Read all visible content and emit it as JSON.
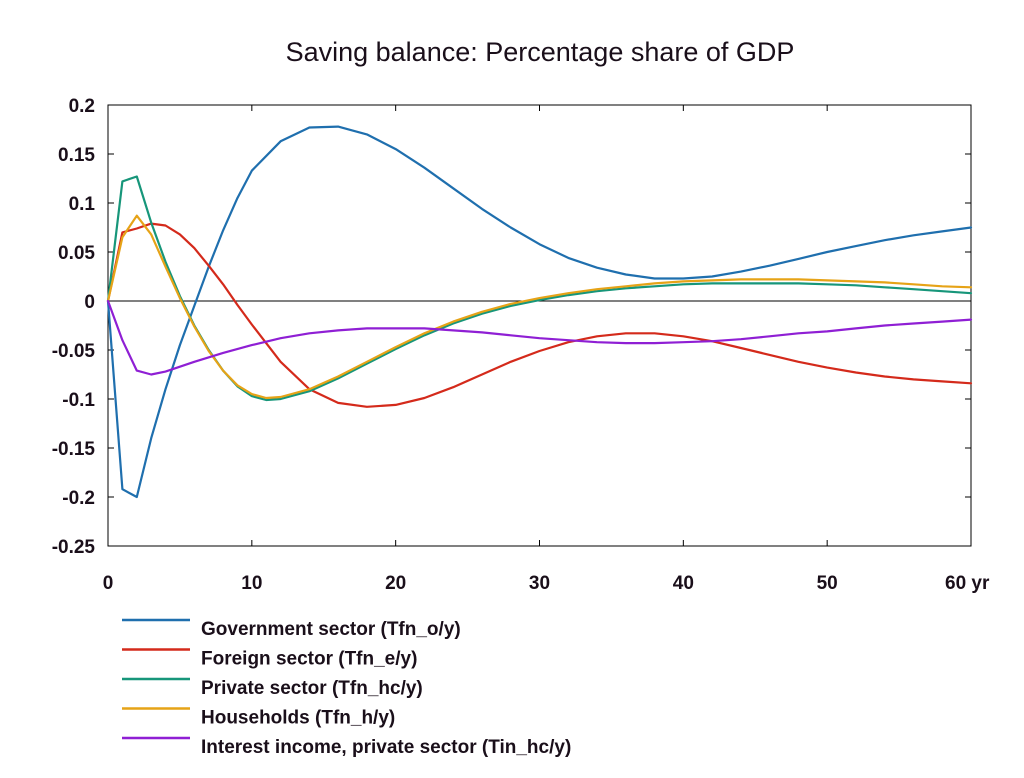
{
  "chart_data": {
    "type": "line",
    "title": "Saving balance: Percentage share of GDP",
    "xlabel": "",
    "ylabel": "",
    "xlim": [
      0,
      60
    ],
    "ylim": [
      -0.25,
      0.2
    ],
    "x_ticks": [
      0,
      10,
      20,
      30,
      40,
      50,
      60
    ],
    "x_tick_labels": [
      "0",
      "10",
      "20",
      "30",
      "40",
      "50",
      "60 yr"
    ],
    "y_ticks": [
      0.2,
      0.15,
      0.1,
      0.05,
      0,
      -0.05,
      -0.1,
      -0.15,
      -0.2,
      -0.25
    ],
    "y_tick_labels": [
      "0.2",
      "0.15",
      "0.1",
      "0.05",
      "0",
      "-0.05",
      "-0.1",
      "-0.15",
      "-0.2",
      "-0.25"
    ],
    "grid": false,
    "legend_position": "bottom",
    "series": [
      {
        "name": "Government sector (Tfn_o/y)",
        "color": "#1f6fae",
        "points": [
          [
            0,
            0
          ],
          [
            1,
            -0.192
          ],
          [
            2,
            -0.2
          ],
          [
            3,
            -0.14
          ],
          [
            4,
            -0.09
          ],
          [
            5,
            -0.045
          ],
          [
            6,
            -0.005
          ],
          [
            7,
            0.035
          ],
          [
            8,
            0.072
          ],
          [
            9,
            0.105
          ],
          [
            10,
            0.133
          ],
          [
            12,
            0.163
          ],
          [
            14,
            0.177
          ],
          [
            16,
            0.178
          ],
          [
            18,
            0.17
          ],
          [
            20,
            0.155
          ],
          [
            22,
            0.136
          ],
          [
            24,
            0.115
          ],
          [
            26,
            0.094
          ],
          [
            28,
            0.075
          ],
          [
            30,
            0.058
          ],
          [
            32,
            0.044
          ],
          [
            34,
            0.034
          ],
          [
            36,
            0.027
          ],
          [
            38,
            0.023
          ],
          [
            40,
            0.023
          ],
          [
            42,
            0.025
          ],
          [
            44,
            0.03
          ],
          [
            46,
            0.036
          ],
          [
            48,
            0.043
          ],
          [
            50,
            0.05
          ],
          [
            52,
            0.056
          ],
          [
            54,
            0.062
          ],
          [
            56,
            0.067
          ],
          [
            58,
            0.071
          ],
          [
            60,
            0.075
          ]
        ]
      },
      {
        "name": "Foreign sector (Tfn_e/y)",
        "color": "#d42a1b",
        "points": [
          [
            0,
            0
          ],
          [
            1,
            0.07
          ],
          [
            2,
            0.074
          ],
          [
            3,
            0.079
          ],
          [
            4,
            0.077
          ],
          [
            5,
            0.068
          ],
          [
            6,
            0.054
          ],
          [
            7,
            0.036
          ],
          [
            8,
            0.017
          ],
          [
            9,
            -0.004
          ],
          [
            10,
            -0.024
          ],
          [
            12,
            -0.062
          ],
          [
            14,
            -0.09
          ],
          [
            16,
            -0.104
          ],
          [
            18,
            -0.108
          ],
          [
            20,
            -0.106
          ],
          [
            22,
            -0.099
          ],
          [
            24,
            -0.088
          ],
          [
            26,
            -0.075
          ],
          [
            28,
            -0.062
          ],
          [
            30,
            -0.051
          ],
          [
            32,
            -0.042
          ],
          [
            34,
            -0.036
          ],
          [
            36,
            -0.033
          ],
          [
            38,
            -0.033
          ],
          [
            40,
            -0.036
          ],
          [
            42,
            -0.041
          ],
          [
            44,
            -0.048
          ],
          [
            46,
            -0.055
          ],
          [
            48,
            -0.062
          ],
          [
            50,
            -0.068
          ],
          [
            52,
            -0.073
          ],
          [
            54,
            -0.077
          ],
          [
            56,
            -0.08
          ],
          [
            58,
            -0.082
          ],
          [
            60,
            -0.084
          ]
        ]
      },
      {
        "name": "Private sector (Tfn_hc/y)",
        "color": "#17967a",
        "points": [
          [
            0,
            0
          ],
          [
            1,
            0.122
          ],
          [
            2,
            0.127
          ],
          [
            3,
            0.08
          ],
          [
            4,
            0.04
          ],
          [
            5,
            0.005
          ],
          [
            6,
            -0.025
          ],
          [
            7,
            -0.05
          ],
          [
            8,
            -0.071
          ],
          [
            9,
            -0.087
          ],
          [
            10,
            -0.097
          ],
          [
            11,
            -0.101
          ],
          [
            12,
            -0.1
          ],
          [
            14,
            -0.092
          ],
          [
            16,
            -0.079
          ],
          [
            18,
            -0.064
          ],
          [
            20,
            -0.049
          ],
          [
            22,
            -0.035
          ],
          [
            24,
            -0.023
          ],
          [
            26,
            -0.013
          ],
          [
            28,
            -0.005
          ],
          [
            30,
            0.001
          ],
          [
            32,
            0.006
          ],
          [
            34,
            0.01
          ],
          [
            36,
            0.013
          ],
          [
            38,
            0.015
          ],
          [
            40,
            0.017
          ],
          [
            42,
            0.018
          ],
          [
            44,
            0.018
          ],
          [
            46,
            0.018
          ],
          [
            48,
            0.018
          ],
          [
            50,
            0.017
          ],
          [
            52,
            0.016
          ],
          [
            54,
            0.014
          ],
          [
            56,
            0.012
          ],
          [
            58,
            0.01
          ],
          [
            60,
            0.008
          ]
        ]
      },
      {
        "name": "Households (Tfn_h/y)",
        "color": "#e6a317",
        "points": [
          [
            0,
            0
          ],
          [
            1,
            0.065
          ],
          [
            2,
            0.087
          ],
          [
            3,
            0.068
          ],
          [
            4,
            0.035
          ],
          [
            5,
            0.003
          ],
          [
            6,
            -0.026
          ],
          [
            7,
            -0.051
          ],
          [
            8,
            -0.071
          ],
          [
            9,
            -0.086
          ],
          [
            10,
            -0.095
          ],
          [
            11,
            -0.099
          ],
          [
            12,
            -0.098
          ],
          [
            14,
            -0.09
          ],
          [
            16,
            -0.077
          ],
          [
            18,
            -0.062
          ],
          [
            20,
            -0.047
          ],
          [
            22,
            -0.033
          ],
          [
            24,
            -0.021
          ],
          [
            26,
            -0.011
          ],
          [
            28,
            -0.003
          ],
          [
            30,
            0.003
          ],
          [
            32,
            0.008
          ],
          [
            34,
            0.012
          ],
          [
            36,
            0.015
          ],
          [
            38,
            0.018
          ],
          [
            40,
            0.02
          ],
          [
            42,
            0.021
          ],
          [
            44,
            0.022
          ],
          [
            46,
            0.022
          ],
          [
            48,
            0.022
          ],
          [
            50,
            0.021
          ],
          [
            52,
            0.02
          ],
          [
            54,
            0.019
          ],
          [
            56,
            0.017
          ],
          [
            58,
            0.015
          ],
          [
            60,
            0.014
          ]
        ]
      },
      {
        "name": "Interest income, private sector (Tin_hc/y)",
        "color": "#8f1fd4",
        "points": [
          [
            0,
            0
          ],
          [
            1,
            -0.04
          ],
          [
            2,
            -0.071
          ],
          [
            3,
            -0.075
          ],
          [
            4,
            -0.072
          ],
          [
            5,
            -0.067
          ],
          [
            6,
            -0.062
          ],
          [
            8,
            -0.053
          ],
          [
            10,
            -0.045
          ],
          [
            12,
            -0.038
          ],
          [
            14,
            -0.033
          ],
          [
            16,
            -0.03
          ],
          [
            18,
            -0.028
          ],
          [
            20,
            -0.028
          ],
          [
            22,
            -0.028
          ],
          [
            24,
            -0.03
          ],
          [
            26,
            -0.032
          ],
          [
            28,
            -0.035
          ],
          [
            30,
            -0.038
          ],
          [
            32,
            -0.04
          ],
          [
            34,
            -0.042
          ],
          [
            36,
            -0.043
          ],
          [
            38,
            -0.043
          ],
          [
            40,
            -0.042
          ],
          [
            42,
            -0.041
          ],
          [
            44,
            -0.039
          ],
          [
            46,
            -0.036
          ],
          [
            48,
            -0.033
          ],
          [
            50,
            -0.031
          ],
          [
            52,
            -0.028
          ],
          [
            54,
            -0.025
          ],
          [
            56,
            -0.023
          ],
          [
            58,
            -0.021
          ],
          [
            60,
            -0.019
          ]
        ]
      }
    ]
  }
}
